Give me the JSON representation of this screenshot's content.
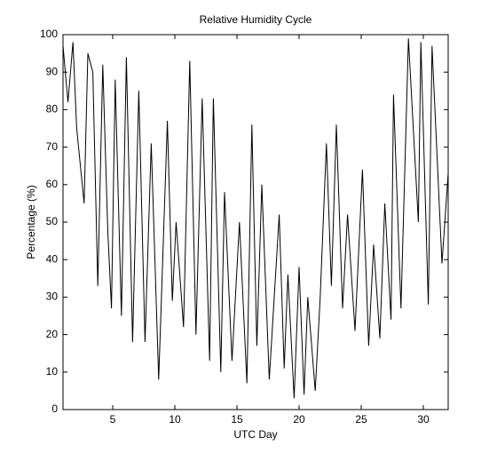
{
  "chart_data": {
    "type": "line",
    "title": "Relative Humidity Cycle",
    "x_label": "UTC Day",
    "y_label": "Percentage (%)",
    "x": [
      1.0,
      1.4,
      1.8,
      2.1,
      2.7,
      3.0,
      3.4,
      3.8,
      4.2,
      4.6,
      4.9,
      5.2,
      5.7,
      6.1,
      6.6,
      7.1,
      7.6,
      8.1,
      8.7,
      9.4,
      9.8,
      10.1,
      10.7,
      11.2,
      11.7,
      12.2,
      12.8,
      13.1,
      13.7,
      14.0,
      14.6,
      15.2,
      15.8,
      16.2,
      16.6,
      17.0,
      17.6,
      18.4,
      18.8,
      19.1,
      19.6,
      20.0,
      20.4,
      20.7,
      21.3,
      21.7,
      22.2,
      22.6,
      23.0,
      23.5,
      23.9,
      24.5,
      25.1,
      25.6,
      26.0,
      26.5,
      26.9,
      27.4,
      27.6,
      28.2,
      28.8,
      29.6,
      29.8,
      30.4,
      30.7,
      31.5,
      32.0
    ],
    "series": [
      {
        "name": "Relative Humidity",
        "color": "#000000",
        "values": [
          97,
          82,
          98,
          75,
          55,
          95,
          90,
          33,
          92,
          48,
          27,
          88,
          25,
          94,
          18,
          85,
          18,
          71,
          8,
          77,
          29,
          50,
          22,
          93,
          20,
          83,
          13,
          83,
          10,
          58,
          13,
          50,
          7,
          76,
          17,
          60,
          8,
          52,
          11,
          36,
          3,
          38,
          4,
          30,
          5,
          30,
          71,
          33,
          76,
          27,
          52,
          21,
          64,
          17,
          44,
          19,
          55,
          24,
          84,
          27,
          99,
          50,
          98,
          28,
          97,
          39,
          63
        ]
      }
    ],
    "xlim": [
      1,
      32
    ],
    "ylim": [
      0,
      100
    ],
    "xticks": [
      5,
      10,
      15,
      20,
      25,
      30
    ],
    "yticks": [
      0,
      10,
      20,
      30,
      40,
      50,
      60,
      70,
      80,
      90,
      100
    ]
  }
}
